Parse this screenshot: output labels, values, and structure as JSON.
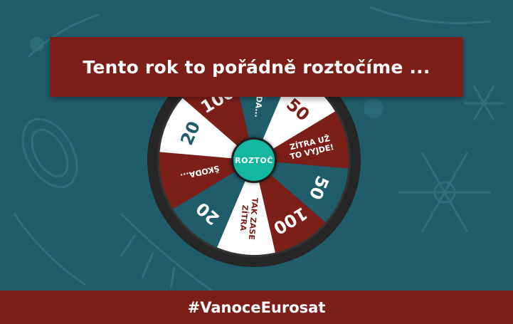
{
  "banner": {
    "title": "Tento rok to pořádně roztočíme ..."
  },
  "wheel": {
    "spin_label": "ROZTOČ",
    "segments": [
      {
        "label": "ŠKODA...",
        "color": "#1f5d6b",
        "text_color": "#ffffff"
      },
      {
        "label": "50",
        "color": "#ffffff",
        "text_color": "#7b1f18"
      },
      {
        "label": "ZÍTRA UŽ|TO VYJDE!",
        "color": "#7b1f18",
        "text_color": "#ffffff"
      },
      {
        "label": "50",
        "color": "#1f5d6b",
        "text_color": "#ffffff"
      },
      {
        "label": "100",
        "color": "#7b1f18",
        "text_color": "#ffffff"
      },
      {
        "label": "TAK ZASE|ZÍTRA",
        "color": "#ffffff",
        "text_color": "#7b1f18"
      },
      {
        "label": "20",
        "color": "#1f5d6b",
        "text_color": "#ffffff"
      },
      {
        "label": "ŠKODA...",
        "color": "#7b1f18",
        "text_color": "#ffffff"
      },
      {
        "label": "20",
        "color": "#ffffff",
        "text_color": "#1f5d6b"
      },
      {
        "label": "100",
        "color": "#7b1f18",
        "text_color": "#ffffff"
      }
    ]
  },
  "footer": {
    "hashtag": "#VanoceEurosat"
  },
  "colors": {
    "background": "#1f5d6b",
    "brand_red": "#7b1f18",
    "button_teal": "#14b8a2",
    "rim": "#262626"
  }
}
